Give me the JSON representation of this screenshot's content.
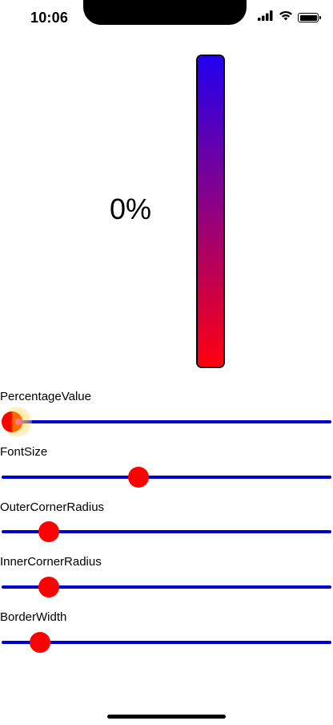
{
  "status_bar": {
    "time": "10:06",
    "battery_level": 1.0,
    "icons": [
      "signal-icon",
      "wifi-icon",
      "battery-icon"
    ]
  },
  "display": {
    "percentage_text": "0%",
    "percentage_value": 0,
    "gauge_gradient_top": "#2200f0",
    "gauge_gradient_bottom": "#ff0010",
    "gauge_border_color": "#000000"
  },
  "sliders": [
    {
      "id": "percentage",
      "label": "PercentageValue",
      "value": 0.0,
      "active": true
    },
    {
      "id": "font-size",
      "label": "FontSize",
      "value": 0.41,
      "active": false
    },
    {
      "id": "outer-corner-radius",
      "label": "OuterCornerRadius",
      "value": 0.12,
      "active": false
    },
    {
      "id": "inner-corner-radius",
      "label": "InnerCornerRadius",
      "value": 0.12,
      "active": false
    },
    {
      "id": "border-width",
      "label": "BorderWidth",
      "value": 0.09,
      "active": false
    }
  ],
  "colors": {
    "track": "#0000cc",
    "thumb": "#ff0000",
    "active_thumb": "#ff6a00"
  }
}
